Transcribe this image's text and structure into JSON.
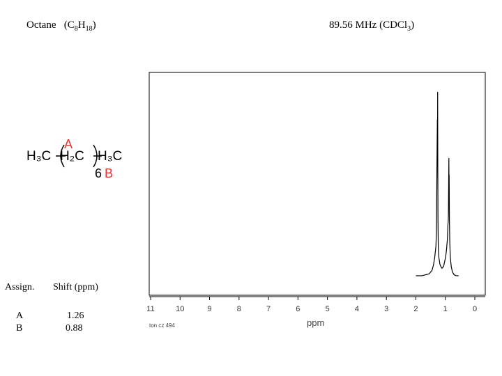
{
  "header": {
    "compound_name": "Octane",
    "formula_open": "(C",
    "formula_c_count": "8",
    "formula_h": "H",
    "formula_h_count": "18",
    "formula_close": ")",
    "frequency": "89.56 MHz (CDCl",
    "solvent_sub": "3",
    "frequency_close": ")"
  },
  "structure": {
    "left_group": "H₃C",
    "middle_group": "H₂C",
    "right_group": "H₃C",
    "label_a": "A",
    "label_b": "B",
    "repeat_count": "6",
    "label_color": "#e8352e"
  },
  "assignment_table": {
    "col_assign": "Assign.",
    "col_shift": "Shift (ppm)",
    "rows": [
      {
        "assign": "A",
        "shift": "1.26"
      },
      {
        "assign": "B",
        "shift": "0.88"
      }
    ]
  },
  "chart_data": {
    "type": "line",
    "title": "",
    "xlabel": "ppm",
    "ylabel": "",
    "xlim": [
      11,
      0
    ],
    "x_reversed": true,
    "x_ticks": [
      "11",
      "10",
      "9",
      "8",
      "7",
      "6",
      "5",
      "4",
      "3",
      "2",
      "1",
      "0"
    ],
    "footer_note": "ton cz 494",
    "series": [
      {
        "x": [
          2.0,
          1.8,
          1.55,
          1.45,
          1.4,
          1.36,
          1.32,
          1.3,
          1.285,
          1.27,
          1.265,
          1.26,
          1.255,
          1.25,
          1.24,
          1.22,
          1.18,
          1.12,
          1.06,
          1.02,
          0.99,
          0.96,
          0.93,
          0.91,
          0.9,
          0.895,
          0.885,
          0.88,
          0.875,
          0.87,
          0.86,
          0.85,
          0.83,
          0.8,
          0.76,
          0.7,
          0.62,
          0.55
        ],
        "y": [
          0.0,
          0.0,
          0.01,
          0.03,
          0.06,
          0.1,
          0.16,
          0.24,
          0.6,
          0.85,
          0.6,
          1.0,
          0.6,
          0.3,
          0.16,
          0.1,
          0.06,
          0.04,
          0.05,
          0.08,
          0.1,
          0.14,
          0.2,
          0.28,
          0.3,
          0.35,
          0.55,
          0.64,
          0.42,
          0.55,
          0.3,
          0.18,
          0.1,
          0.05,
          0.02,
          0.005,
          0.0,
          0.0
        ]
      }
    ],
    "peaks": [
      {
        "label": "A",
        "ppm": 1.26
      },
      {
        "label": "B",
        "ppm": 0.88
      }
    ],
    "grid": false
  }
}
